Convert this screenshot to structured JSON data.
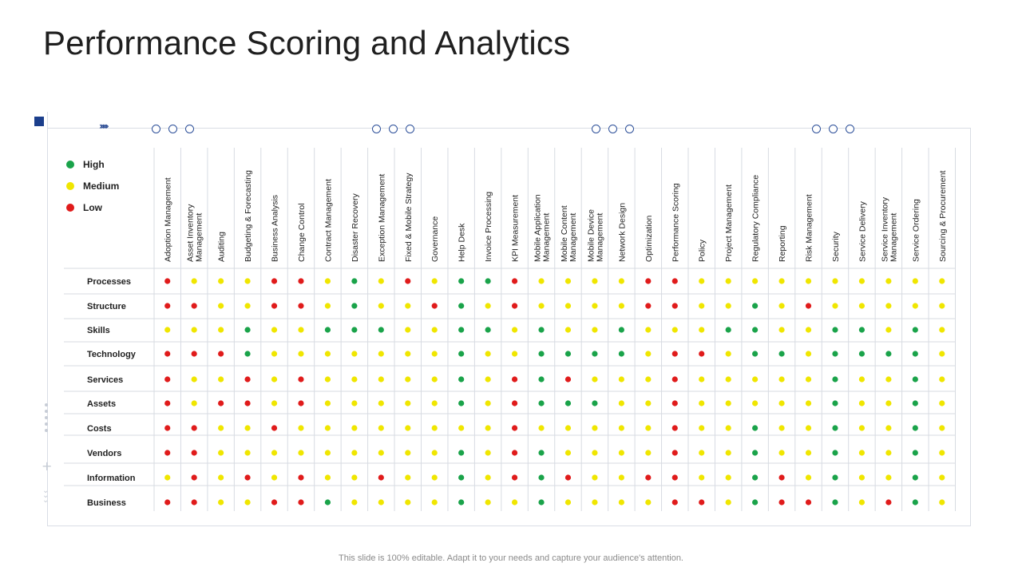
{
  "title": "Performance Scoring and Analytics",
  "footer": "This slide is 100% editable. Adapt it to your needs and capture your audience's attention.",
  "legend": [
    {
      "label": "High",
      "color": "#1aa34a"
    },
    {
      "label": "Medium",
      "color": "#f0e600"
    },
    {
      "label": "Low",
      "color": "#e01b1b"
    }
  ],
  "colors": {
    "H": "#1aa34a",
    "M": "#f0e600",
    "L": "#e01b1b",
    "accent": "#1c3f8c"
  },
  "decorations": {
    "chevrons": "›››››"
  },
  "chart_data": {
    "type": "table",
    "columns": [
      [
        "Adoption Management"
      ],
      [
        "Asset Inventory",
        "Management"
      ],
      [
        "Auditing"
      ],
      [
        "Budgeting & Forecasting"
      ],
      [
        "Business Analysis"
      ],
      [
        "Change Control"
      ],
      [
        "Contract Management"
      ],
      [
        "Disaster Recovery"
      ],
      [
        "Exception Management"
      ],
      [
        "Fixed & Mobile Strategy"
      ],
      [
        "Governance"
      ],
      [
        "Help Desk"
      ],
      [
        "Invoice Processing"
      ],
      [
        "KPI Measurement"
      ],
      [
        "Mobile Application",
        "Management"
      ],
      [
        "Mobile Content",
        "Management"
      ],
      [
        "Mobile Device",
        "Management"
      ],
      [
        "Network Design"
      ],
      [
        "Optimization"
      ],
      [
        "Performance Scoring"
      ],
      [
        "Policy"
      ],
      [
        "Project Management"
      ],
      [
        "Regulatory Compliance"
      ],
      [
        "Reporting"
      ],
      [
        "Risk Management"
      ],
      [
        "Security"
      ],
      [
        "Service Delivery"
      ],
      [
        "Service Inventory",
        "Management"
      ],
      [
        "Service Ordering"
      ],
      [
        "Sourcing & Procurement"
      ]
    ],
    "rows": [
      {
        "label": "Processes",
        "values": [
          "L",
          "M",
          "M",
          "M",
          "L",
          "L",
          "M",
          "H",
          "M",
          "L",
          "M",
          "H",
          "H",
          "L",
          "M",
          "M",
          "M",
          "M",
          "L",
          "L",
          "M",
          "M",
          "M",
          "M",
          "M",
          "M",
          "M",
          "M",
          "M",
          "M"
        ]
      },
      {
        "label": "Structure",
        "values": [
          "L",
          "L",
          "M",
          "M",
          "L",
          "L",
          "M",
          "H",
          "M",
          "M",
          "L",
          "H",
          "M",
          "L",
          "M",
          "M",
          "M",
          "M",
          "L",
          "L",
          "M",
          "M",
          "H",
          "M",
          "L",
          "M",
          "M",
          "M",
          "M",
          "M"
        ]
      },
      {
        "label": "Skills",
        "values": [
          "M",
          "M",
          "M",
          "H",
          "M",
          "M",
          "H",
          "H",
          "H",
          "M",
          "M",
          "H",
          "H",
          "M",
          "H",
          "M",
          "M",
          "H",
          "M",
          "M",
          "M",
          "H",
          "H",
          "M",
          "M",
          "H",
          "H",
          "M",
          "H",
          "M"
        ]
      },
      {
        "label": "Technology",
        "values": [
          "L",
          "L",
          "L",
          "H",
          "M",
          "M",
          "M",
          "M",
          "M",
          "M",
          "M",
          "H",
          "M",
          "M",
          "H",
          "H",
          "H",
          "H",
          "M",
          "L",
          "L",
          "M",
          "H",
          "H",
          "M",
          "H",
          "H",
          "H",
          "H",
          "M"
        ]
      },
      {
        "label": "Services",
        "values": [
          "L",
          "M",
          "M",
          "L",
          "M",
          "L",
          "M",
          "M",
          "M",
          "M",
          "M",
          "H",
          "M",
          "L",
          "H",
          "L",
          "M",
          "M",
          "M",
          "L",
          "M",
          "M",
          "M",
          "M",
          "M",
          "H",
          "M",
          "M",
          "H",
          "M"
        ]
      },
      {
        "label": "Assets",
        "values": [
          "L",
          "M",
          "L",
          "L",
          "M",
          "L",
          "M",
          "M",
          "M",
          "M",
          "M",
          "H",
          "M",
          "L",
          "H",
          "H",
          "H",
          "M",
          "M",
          "L",
          "M",
          "M",
          "M",
          "M",
          "M",
          "H",
          "M",
          "M",
          "H",
          "M"
        ]
      },
      {
        "label": "Costs",
        "values": [
          "L",
          "L",
          "M",
          "M",
          "L",
          "M",
          "M",
          "M",
          "M",
          "M",
          "M",
          "M",
          "M",
          "L",
          "M",
          "M",
          "M",
          "M",
          "M",
          "L",
          "M",
          "M",
          "H",
          "M",
          "M",
          "H",
          "M",
          "M",
          "H",
          "M"
        ]
      },
      {
        "label": "Vendors",
        "values": [
          "L",
          "L",
          "M",
          "M",
          "M",
          "M",
          "M",
          "M",
          "M",
          "M",
          "M",
          "H",
          "M",
          "L",
          "H",
          "M",
          "M",
          "M",
          "M",
          "L",
          "M",
          "M",
          "H",
          "M",
          "M",
          "H",
          "M",
          "M",
          "H",
          "M"
        ]
      },
      {
        "label": "Information",
        "values": [
          "M",
          "L",
          "M",
          "L",
          "M",
          "L",
          "M",
          "M",
          "L",
          "M",
          "M",
          "H",
          "M",
          "L",
          "H",
          "L",
          "M",
          "M",
          "L",
          "L",
          "M",
          "M",
          "H",
          "L",
          "M",
          "H",
          "M",
          "M",
          "H",
          "M"
        ]
      },
      {
        "label": "Business",
        "values": [
          "L",
          "L",
          "M",
          "M",
          "L",
          "L",
          "H",
          "M",
          "M",
          "M",
          "M",
          "H",
          "M",
          "M",
          "H",
          "M",
          "M",
          "M",
          "M",
          "L",
          "L",
          "M",
          "H",
          "L",
          "L",
          "H",
          "M",
          "L",
          "H",
          "M"
        ]
      }
    ]
  }
}
